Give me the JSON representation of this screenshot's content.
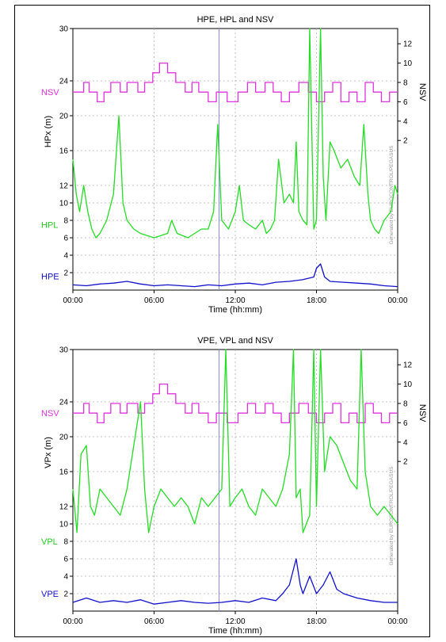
{
  "chart_data": [
    {
      "type": "line",
      "title": "HPE, HPL and NSV",
      "xlabel": "Time (hh:mm)",
      "ylabel": "HPx  (m)",
      "y2label": "NSV",
      "watermark": "Generated by EUROCONTROL/PEGASUS",
      "xlim_hours": [
        0,
        24
      ],
      "x_ticks": [
        "00:00",
        "06:00",
        "12:00",
        "18:00",
        "00:00"
      ],
      "ylim": [
        0,
        30
      ],
      "y_ticks": [
        2,
        4,
        6,
        8,
        10,
        12,
        16,
        20,
        24,
        30
      ],
      "y2_ticks": [
        2,
        4,
        6,
        8,
        10,
        12
      ],
      "grid": true,
      "series_labels": {
        "nsv": "NSV",
        "pl": "HPL",
        "pe": "HPE"
      },
      "series": [
        {
          "name": "NSV",
          "color": "#e030e0",
          "axis": "right",
          "x": [
            0.0,
            0.8,
            1.2,
            1.8,
            2.3,
            2.8,
            3.5,
            4.0,
            4.8,
            5.3,
            5.9,
            6.4,
            7.0,
            7.6,
            8.3,
            8.8,
            9.3,
            10.0,
            10.6,
            11.4,
            12.2,
            12.9,
            13.5,
            14.2,
            14.8,
            15.4,
            16.0,
            16.7,
            17.4,
            18.0,
            18.6,
            19.2,
            19.8,
            20.4,
            21.0,
            21.6,
            22.2,
            22.8,
            23.4,
            24.0
          ],
          "values": [
            7,
            8,
            7,
            6,
            7,
            8,
            7,
            8,
            7,
            8,
            9,
            10,
            9,
            8,
            7,
            8,
            7,
            6,
            7,
            6,
            7,
            8,
            7,
            8,
            7,
            6,
            7,
            8,
            7,
            6,
            7,
            8,
            6,
            7,
            6,
            8,
            7,
            6,
            7,
            7
          ]
        },
        {
          "name": "HPL",
          "color": "#22dd22",
          "axis": "left",
          "x": [
            0.0,
            0.25,
            0.5,
            0.8,
            1.1,
            1.4,
            1.7,
            2.0,
            2.5,
            3.0,
            3.4,
            3.7,
            4.0,
            4.5,
            5.0,
            6.0,
            7.0,
            7.3,
            7.7,
            8.5,
            9.0,
            9.5,
            10.0,
            10.4,
            10.7,
            11.0,
            11.5,
            12.0,
            12.3,
            12.6,
            13.0,
            13.5,
            14.0,
            14.3,
            14.6,
            14.9,
            15.2,
            15.6,
            16.0,
            16.3,
            16.5,
            16.7,
            17.0,
            17.3,
            17.5,
            17.8,
            18.0,
            18.3,
            18.5,
            18.7,
            19.0,
            19.3,
            19.8,
            20.3,
            20.8,
            21.2,
            21.5,
            21.8,
            22.0,
            22.3,
            22.6,
            23.0,
            23.5,
            23.8,
            24.0
          ],
          "values": [
            15,
            11,
            9,
            12,
            9,
            7,
            6,
            6.5,
            8,
            11,
            20,
            10,
            8,
            7,
            6.5,
            6,
            6.5,
            8,
            6.5,
            6,
            6.5,
            7,
            7,
            9,
            19,
            8,
            7,
            9,
            12,
            8,
            7.5,
            7,
            8,
            6.5,
            7,
            8,
            15,
            10,
            11,
            10,
            17,
            9,
            8,
            7.5,
            30,
            7,
            8,
            30,
            13,
            8,
            17,
            16,
            14,
            15,
            13,
            12,
            19,
            11,
            8,
            7,
            6.5,
            8,
            9,
            12,
            11
          ]
        },
        {
          "name": "HPE",
          "color": "#1111cc",
          "axis": "left",
          "x": [
            0.0,
            1.0,
            2.0,
            3.0,
            4.0,
            5.0,
            6.0,
            7.0,
            8.0,
            9.0,
            10.0,
            11.0,
            12.0,
            13.0,
            14.0,
            15.0,
            16.0,
            17.0,
            17.8,
            18.0,
            18.3,
            18.6,
            19.0,
            20.0,
            21.0,
            22.0,
            23.0,
            24.0
          ],
          "values": [
            0.6,
            0.5,
            0.7,
            0.8,
            1.0,
            0.7,
            0.5,
            0.6,
            0.5,
            0.4,
            0.6,
            0.5,
            0.7,
            0.8,
            0.6,
            0.9,
            1.0,
            1.2,
            1.5,
            2.5,
            3.0,
            1.5,
            1.0,
            0.9,
            0.8,
            0.7,
            0.5,
            0.4
          ]
        }
      ]
    },
    {
      "type": "line",
      "title": "VPE, VPL and NSV",
      "xlabel": "Time (hh:mm)",
      "ylabel": "VPx  (m)",
      "y2label": "NSV",
      "watermark": "Generated by EUROCONTROL/PEGASUS",
      "xlim_hours": [
        0,
        24
      ],
      "x_ticks": [
        "00:00",
        "06:00",
        "12:00",
        "18:00",
        "00:00"
      ],
      "ylim": [
        0,
        30
      ],
      "y_ticks": [
        2,
        4,
        6,
        8,
        10,
        12,
        16,
        20,
        24,
        30
      ],
      "y2_ticks": [
        2,
        4,
        6,
        8,
        10,
        12
      ],
      "grid": true,
      "series_labels": {
        "nsv": "NSV",
        "pl": "VPL",
        "pe": "VPE"
      },
      "series": [
        {
          "name": "NSV",
          "color": "#e030e0",
          "axis": "right",
          "x": [
            0.0,
            0.8,
            1.2,
            1.8,
            2.3,
            2.8,
            3.5,
            4.0,
            4.8,
            5.3,
            5.9,
            6.4,
            7.0,
            7.6,
            8.3,
            8.8,
            9.3,
            10.0,
            10.6,
            11.4,
            12.2,
            12.9,
            13.5,
            14.2,
            14.8,
            15.4,
            16.0,
            16.7,
            17.4,
            18.0,
            18.6,
            19.2,
            19.8,
            20.4,
            21.0,
            21.6,
            22.2,
            22.8,
            23.4,
            24.0
          ],
          "values": [
            7,
            8,
            7,
            6,
            7,
            8,
            7,
            8,
            7,
            8,
            9,
            10,
            9,
            8,
            7,
            8,
            7,
            6,
            7,
            6,
            7,
            8,
            7,
            8,
            7,
            6,
            7,
            8,
            7,
            6,
            7,
            8,
            6,
            7,
            6,
            8,
            7,
            6,
            7,
            7
          ]
        },
        {
          "name": "VPL",
          "color": "#22dd22",
          "axis": "left",
          "x": [
            0.0,
            0.3,
            0.6,
            1.0,
            1.3,
            1.6,
            2.0,
            2.5,
            3.0,
            3.5,
            4.0,
            4.5,
            5.0,
            5.3,
            5.6,
            6.0,
            6.5,
            7.0,
            7.5,
            8.0,
            8.5,
            9.0,
            9.5,
            10.0,
            10.5,
            11.0,
            11.3,
            11.6,
            12.0,
            12.5,
            13.0,
            13.5,
            14.0,
            14.5,
            15.0,
            15.5,
            16.0,
            16.3,
            16.5,
            16.8,
            17.0,
            17.5,
            17.8,
            18.0,
            18.3,
            18.6,
            19.0,
            19.5,
            20.0,
            20.5,
            21.0,
            21.3,
            21.6,
            22.0,
            22.5,
            23.0,
            23.5,
            24.0
          ],
          "values": [
            14,
            9,
            18,
            19,
            12,
            11,
            14,
            13,
            12,
            11,
            14,
            19,
            24,
            14,
            9,
            12,
            14,
            13,
            12,
            13,
            12,
            10,
            13,
            12,
            13,
            14,
            30,
            12,
            13,
            14,
            12,
            11,
            14,
            13,
            12,
            14,
            18,
            30,
            13,
            14,
            9,
            11,
            30,
            12,
            30,
            16,
            20,
            19,
            17,
            15,
            14,
            30,
            16,
            12,
            11,
            12,
            11,
            10
          ]
        },
        {
          "name": "VPE",
          "color": "#1111cc",
          "axis": "left",
          "x": [
            0.0,
            1.0,
            2.0,
            3.0,
            4.0,
            5.0,
            6.0,
            7.0,
            8.0,
            9.0,
            10.0,
            11.0,
            12.0,
            13.0,
            14.0,
            15.0,
            15.5,
            16.0,
            16.5,
            16.8,
            17.0,
            17.5,
            18.0,
            18.5,
            19.0,
            19.5,
            20.0,
            21.0,
            22.0,
            23.0,
            24.0
          ],
          "values": [
            1.0,
            1.5,
            1.0,
            1.2,
            1.0,
            1.3,
            0.8,
            1.0,
            1.2,
            1.0,
            0.9,
            1.0,
            1.2,
            1.0,
            1.5,
            1.2,
            2.0,
            3.0,
            6.0,
            3.0,
            2.0,
            4.0,
            2.0,
            3.0,
            4.5,
            2.5,
            2.0,
            1.5,
            1.2,
            1.0,
            1.0
          ]
        }
      ]
    }
  ]
}
